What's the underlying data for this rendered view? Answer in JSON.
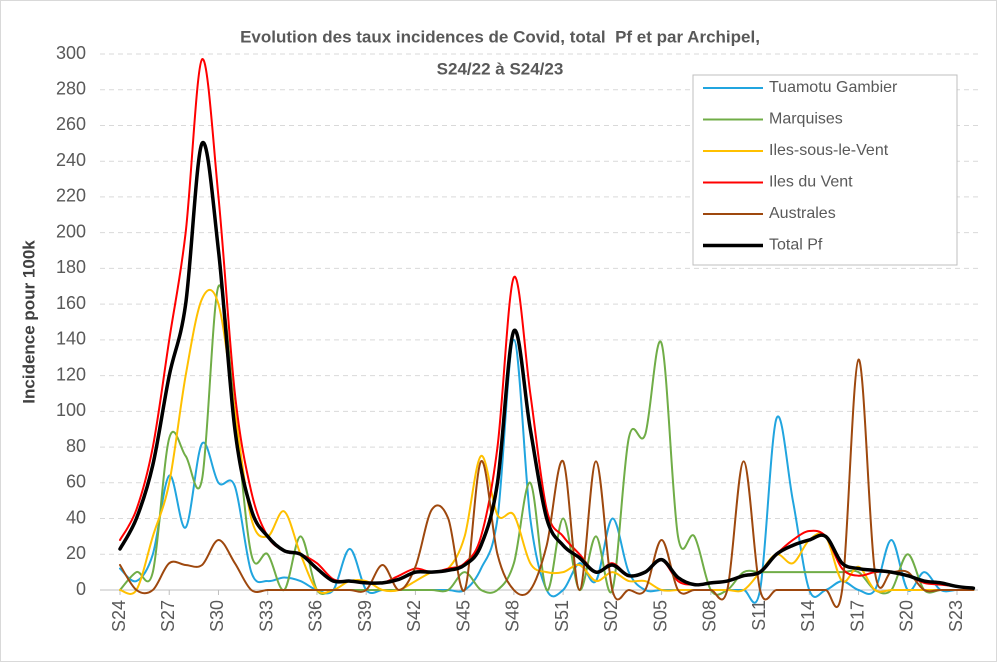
{
  "chart_data": {
    "type": "line",
    "title": [
      "Evolution des taux incidences de Covid, total  Pf et par Archipel,",
      "S24/22 à S24/23"
    ],
    "ylabel": "Incidence pour 100k",
    "categories": [
      "S24",
      null,
      null,
      "S27",
      null,
      null,
      "S30",
      null,
      null,
      "S33",
      null,
      null,
      "S36",
      null,
      null,
      "S39",
      null,
      null,
      "S42",
      null,
      null,
      "S45",
      null,
      null,
      "S48",
      null,
      null,
      "S51",
      null,
      null,
      "S02",
      null,
      null,
      "S05",
      null,
      null,
      "S08",
      null,
      null,
      "S11",
      null,
      null,
      "S14",
      null,
      null,
      "S17",
      null,
      null,
      "S20",
      null,
      null,
      "S23",
      null
    ],
    "ylim": [
      0,
      300
    ],
    "yticks": [
      0,
      20,
      40,
      60,
      80,
      100,
      120,
      140,
      160,
      180,
      200,
      220,
      240,
      260,
      280,
      300
    ],
    "grid": true,
    "legend": "upper right",
    "series": [
      {
        "name": "Tuamotu Gambier",
        "color": "#21a5df",
        "width": 2,
        "values": [
          12,
          5,
          20,
          64,
          35,
          82,
          60,
          58,
          10,
          5,
          7,
          5,
          0,
          0,
          23,
          0,
          0,
          0,
          0,
          0,
          0,
          0,
          12,
          40,
          140,
          40,
          0,
          0,
          15,
          5,
          40,
          10,
          0,
          0,
          0,
          0,
          0,
          0,
          0,
          0,
          96,
          50,
          0,
          0,
          5,
          0,
          0,
          28,
          0,
          10,
          0,
          0,
          0
        ]
      },
      {
        "name": "Marquises",
        "color": "#70ad47",
        "width": 2,
        "values": [
          0,
          10,
          10,
          85,
          75,
          62,
          170,
          100,
          20,
          20,
          0,
          30,
          0,
          0,
          0,
          0,
          0,
          0,
          0,
          0,
          0,
          10,
          0,
          0,
          15,
          60,
          0,
          40,
          0,
          30,
          0,
          85,
          87,
          138,
          30,
          30,
          0,
          0,
          10,
          10,
          10,
          10,
          10,
          10,
          10,
          10,
          0,
          0,
          20,
          0,
          0,
          0,
          0
        ]
      },
      {
        "name": "Iles-sous-le-Vent",
        "color": "#ffc000",
        "width": 2,
        "values": [
          0,
          0,
          30,
          60,
          120,
          163,
          160,
          100,
          40,
          30,
          44,
          20,
          0,
          0,
          5,
          5,
          0,
          0,
          5,
          10,
          12,
          30,
          75,
          42,
          42,
          15,
          10,
          10,
          14,
          5,
          10,
          5,
          5,
          0,
          0,
          0,
          0,
          0,
          0,
          10,
          20,
          15,
          28,
          30,
          5,
          13,
          0,
          0,
          0,
          0,
          0,
          0,
          0
        ]
      },
      {
        "name": "Iles du Vent",
        "color": "#ff0000",
        "width": 2,
        "values": [
          28,
          45,
          80,
          140,
          200,
          297,
          220,
          110,
          55,
          30,
          22,
          20,
          15,
          6,
          5,
          4,
          4,
          8,
          12,
          10,
          12,
          15,
          30,
          80,
          175,
          110,
          45,
          30,
          20,
          10,
          15,
          8,
          10,
          17,
          5,
          3,
          4,
          5,
          8,
          10,
          20,
          28,
          33,
          30,
          12,
          8,
          10,
          10,
          8,
          4,
          3,
          2,
          1
        ]
      },
      {
        "name": "Australes",
        "color": "#9e480e",
        "width": 2,
        "values": [
          14,
          0,
          0,
          15,
          14,
          14,
          28,
          15,
          0,
          0,
          0,
          0,
          0,
          0,
          0,
          0,
          14,
          0,
          13,
          45,
          40,
          0,
          72,
          20,
          0,
          0,
          25,
          72,
          0,
          72,
          0,
          0,
          0,
          28,
          0,
          0,
          0,
          0,
          72,
          0,
          0,
          0,
          0,
          0,
          0,
          129,
          10,
          10,
          10,
          0,
          0,
          0,
          0
        ]
      },
      {
        "name": "Total Pf",
        "color": "#000000",
        "width": 3.5,
        "values": [
          23,
          40,
          70,
          120,
          160,
          250,
          190,
          90,
          45,
          30,
          22,
          20,
          12,
          5,
          5,
          4,
          4,
          6,
          10,
          10,
          11,
          14,
          25,
          60,
          145,
          90,
          40,
          25,
          18,
          10,
          14,
          8,
          10,
          17,
          7,
          3,
          4,
          5,
          8,
          10,
          20,
          25,
          28,
          30,
          15,
          12,
          11,
          10,
          8,
          5,
          4,
          2,
          1
        ]
      }
    ]
  }
}
